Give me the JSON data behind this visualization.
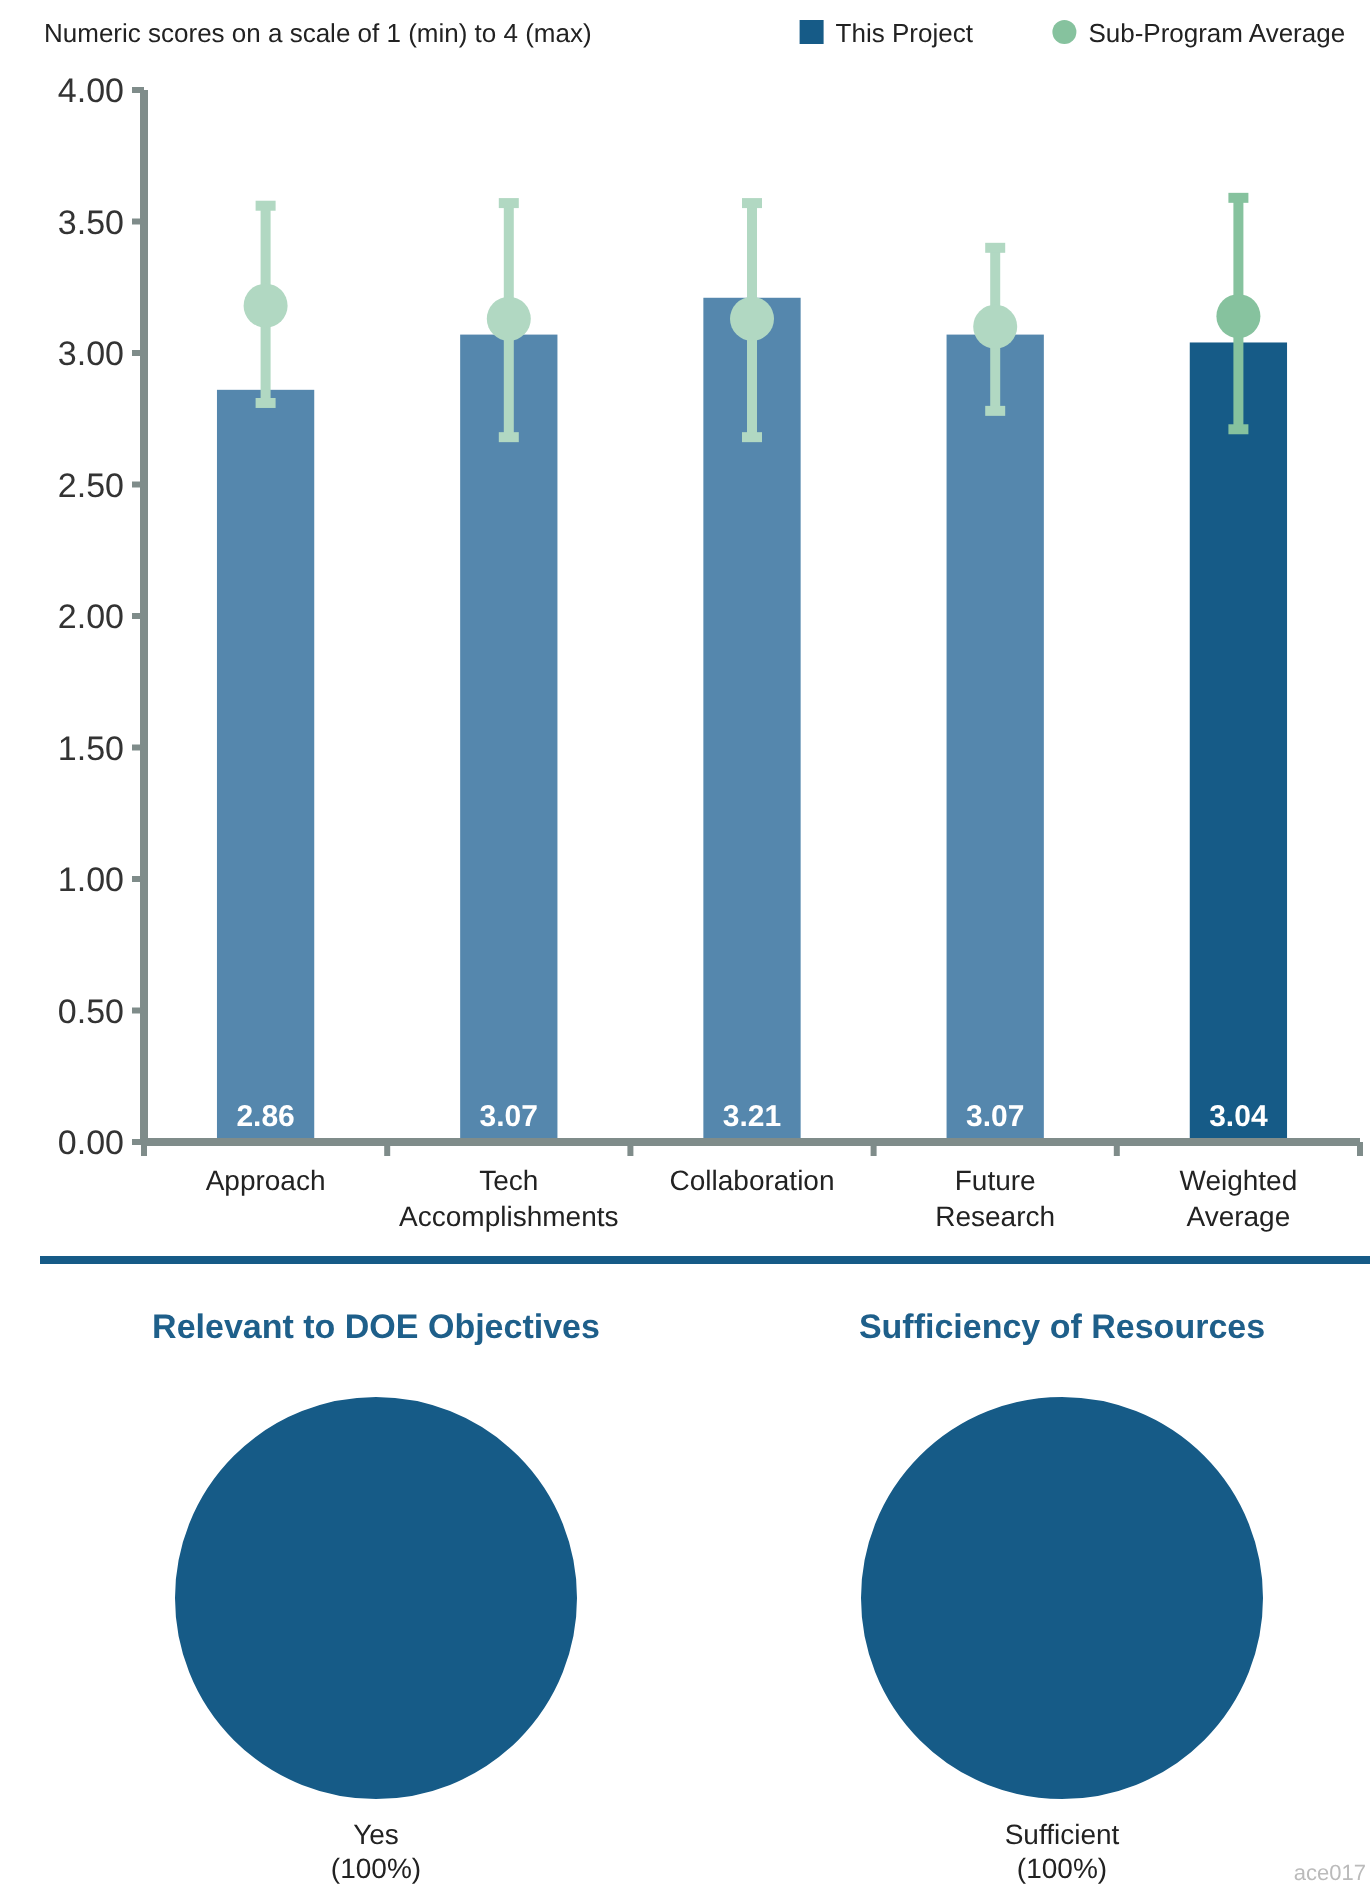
{
  "chart_data": [
    {
      "type": "bar",
      "title": "Numeric scores on a scale of 1 (min) to 4 (max)",
      "categories": [
        "Approach",
        "Tech Accomplishments",
        "Collaboration",
        "Future Research",
        "Weighted Average"
      ],
      "series": [
        {
          "name": "This Project",
          "type": "bar",
          "color": "#165b87",
          "colors": [
            "#5587ad",
            "#5587ad",
            "#5587ad",
            "#5587ad",
            "#165b87"
          ],
          "values": [
            2.86,
            3.07,
            3.21,
            3.07,
            3.04
          ],
          "value_labels": [
            "2.86",
            "3.07",
            "3.21",
            "3.07",
            "3.04"
          ]
        },
        {
          "name": "Sub-Program Average",
          "type": "scatter",
          "color": "#86c29e",
          "colors": [
            "#b1d8c2",
            "#b1d8c2",
            "#b1d8c2",
            "#b1d8c2",
            "#86c29e"
          ],
          "x": [
            "Approach",
            "Tech Accomplishments",
            "Collaboration",
            "Future Research",
            "Weighted Average"
          ],
          "values": [
            3.18,
            3.13,
            3.13,
            3.1,
            3.14
          ],
          "errors": [
            [
              2.81,
              3.56
            ],
            [
              2.68,
              3.57
            ],
            [
              2.68,
              3.57
            ],
            [
              2.78,
              3.4
            ],
            [
              2.71,
              3.59
            ]
          ]
        }
      ],
      "ylim": [
        0,
        4
      ],
      "yticks": [
        {
          "value": 0,
          "label": "0.00"
        },
        {
          "value": 0.5,
          "label": "0.50"
        },
        {
          "value": 1,
          "label": "1.00"
        },
        {
          "value": 1.5,
          "label": "1.50"
        },
        {
          "value": 2,
          "label": "2.00"
        },
        {
          "value": 2.5,
          "label": "2.50"
        },
        {
          "value": 3,
          "label": "3.00"
        },
        {
          "value": 3.5,
          "label": "3.50"
        },
        {
          "value": 4,
          "label": "4.00"
        }
      ],
      "marker": "circle",
      "legend": "top right",
      "grid": false
    },
    {
      "type": "pie",
      "title": "Relevant to DOE Objectives",
      "categories": [
        "Yes"
      ],
      "values": [
        100
      ],
      "colors": [
        "#165b87"
      ],
      "value_labels": [
        "(100%)"
      ]
    },
    {
      "type": "pie",
      "title": "Sufficiency of  Resources",
      "categories": [
        "Sufficient"
      ],
      "values": [
        100
      ],
      "colors": [
        "#165b87"
      ],
      "value_labels": [
        "(100%)"
      ],
      "annotations": [
        "ace017"
      ]
    }
  ]
}
